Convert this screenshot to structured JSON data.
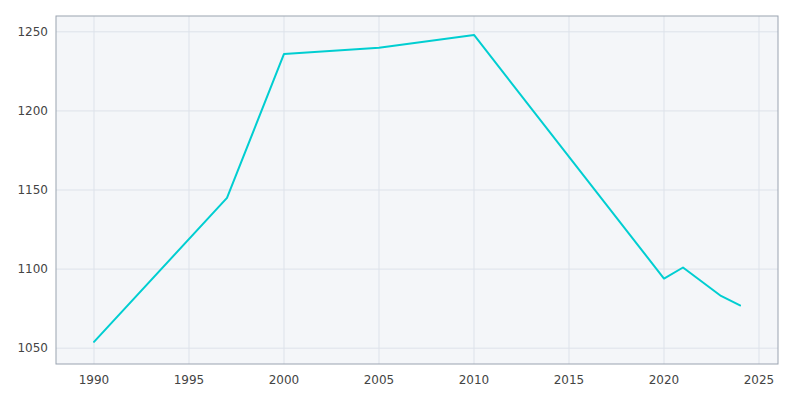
{
  "chart_data": {
    "type": "line",
    "x": [
      1990,
      1997,
      2000,
      2005,
      2010,
      2020,
      2021,
      2023,
      2024
    ],
    "values": [
      1054,
      1145,
      1236,
      1240,
      1248,
      1094,
      1101,
      1083,
      1077
    ],
    "color": "#00CED1",
    "xlim": [
      1988,
      2026
    ],
    "ylim": [
      1040,
      1260
    ],
    "xticks": [
      1990,
      1995,
      2000,
      2005,
      2010,
      2015,
      2020,
      2025
    ],
    "yticks": [
      1050,
      1100,
      1150,
      1200,
      1250
    ],
    "grid": true
  }
}
